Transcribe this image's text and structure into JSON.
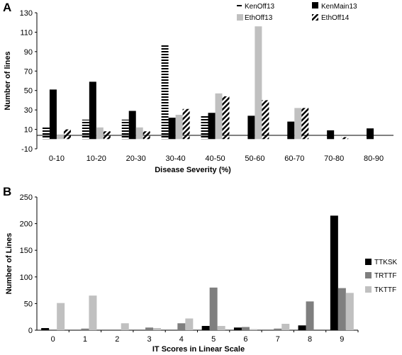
{
  "colors": {
    "black": "#000000",
    "dark_gray": "#7f7f7f",
    "light_gray": "#c0c0c0"
  },
  "chart_data": [
    {
      "panel": "A",
      "type": "bar",
      "xlabel": "Disease Severity (%)",
      "ylabel": "Number of lines",
      "ylim": [
        -10,
        130
      ],
      "yticks": [
        -10,
        10,
        30,
        50,
        70,
        90,
        110,
        130
      ],
      "grid": false,
      "legend_position": "top-right",
      "categories": [
        "0-10",
        "10-20",
        "20-30",
        "30-40",
        "40-50",
        "50-60",
        "60-70",
        "70-80",
        "80-90"
      ],
      "series": [
        {
          "name": "KenOff13",
          "pattern": "horizontal-stripes",
          "values": [
            12,
            20,
            20,
            97,
            25,
            0,
            0,
            0,
            0
          ]
        },
        {
          "name": "KenMain13",
          "pattern": "solid-black",
          "values": [
            51,
            59,
            29,
            22,
            27,
            24,
            18,
            9,
            11
          ]
        },
        {
          "name": "EthOff13",
          "pattern": "solid-light-gray",
          "values": [
            4,
            12,
            12,
            25,
            47,
            116,
            32,
            0,
            0
          ]
        },
        {
          "name": "EthOff14",
          "pattern": "diagonal-stripes",
          "values": [
            10,
            8,
            8,
            31,
            44,
            40,
            32,
            2,
            0
          ]
        }
      ]
    },
    {
      "panel": "B",
      "type": "bar",
      "xlabel": "IT Scores in Linear Scale",
      "ylabel": "Number of Lines",
      "ylim": [
        0,
        250
      ],
      "yticks": [
        0,
        50,
        100,
        150,
        200,
        250
      ],
      "grid": false,
      "legend_position": "right",
      "categories": [
        "0",
        "1",
        "2",
        "3",
        "4",
        "5",
        "6",
        "7",
        "8",
        "9"
      ],
      "series": [
        {
          "name": "TTKSK",
          "color": "#000000",
          "values": [
            4,
            0,
            0,
            0,
            0,
            8,
            5,
            0,
            9,
            215
          ]
        },
        {
          "name": "TRTTF",
          "color": "#7f7f7f",
          "values": [
            0,
            3,
            0,
            5,
            13,
            80,
            6,
            3,
            54,
            79
          ]
        },
        {
          "name": "TKTTF",
          "color": "#c0c0c0",
          "values": [
            51,
            65,
            13,
            4,
            22,
            8,
            2,
            12,
            0,
            70
          ]
        }
      ]
    }
  ]
}
